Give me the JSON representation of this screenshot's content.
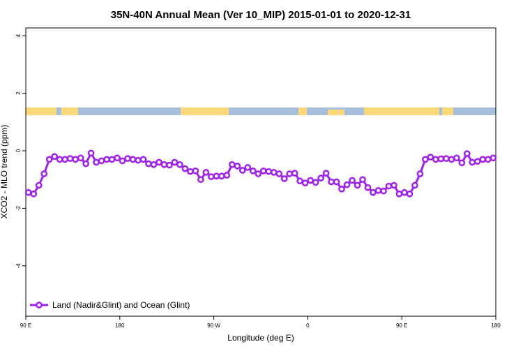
{
  "chart_data": {
    "type": "line",
    "title": "35N-40N Annual Mean (Ver 10_MIP)   2015-01-01 to 2020-12-31",
    "x_label": "Longitude (deg E)",
    "y_label": "XCO2 - MLO trend (ppm)",
    "xlim": [
      90,
      540
    ],
    "ylim": [
      -5.75,
      4.27
    ],
    "xticks": [
      {
        "value": 90,
        "label": "90 E"
      },
      180,
      {
        "value": 270,
        "label": "90 W"
      },
      {
        "value": 360,
        "label": "0"
      },
      {
        "value": 450,
        "label": "90 E"
      },
      {
        "value": 540,
        "label": "180"
      }
    ],
    "yticks": [
      4,
      2,
      0,
      -2,
      -4
    ],
    "legend": "bottom-left",
    "x": [
      92.5,
      97.5,
      102.5,
      107.5,
      112.5,
      117.5,
      122.5,
      127.5,
      132.5,
      137.5,
      142.5,
      147.5,
      152.5,
      157.5,
      162.5,
      167.5,
      172.5,
      177.5,
      182.5,
      187.5,
      192.5,
      197.5,
      202.5,
      207.5,
      212.5,
      217.5,
      222.5,
      227.5,
      232.5,
      237.5,
      242.5,
      247.5,
      252.5,
      257.5,
      262.5,
      267.5,
      272.5,
      277.5,
      282.5,
      287.5,
      292.5,
      297.5,
      302.5,
      307.5,
      312.5,
      317.5,
      322.5,
      327.5,
      332.5,
      337.5,
      342.5,
      347.5,
      352.5,
      357.5,
      362.5,
      367.5,
      372.5,
      377.5,
      382.5,
      387.5,
      392.5,
      397.5,
      402.5,
      407.5,
      412.5,
      417.5,
      422.5,
      427.5,
      432.5,
      437.5,
      442.5,
      447.5,
      452.5,
      457.5,
      462.5,
      467.5,
      472.5,
      477.5,
      482.5,
      487.5,
      492.5,
      497.5,
      502.5,
      507.5,
      512.5,
      517.5,
      522.5,
      527.5,
      532.5,
      537.5
    ],
    "series": [
      {
        "name": "Land (Nadir&Glint) and Ocean (Glint)",
        "color": "#a020f0",
        "values": [
          -1.45,
          -1.5,
          -1.2,
          -0.8,
          -0.3,
          -0.2,
          -0.3,
          -0.3,
          -0.27,
          -0.3,
          -0.25,
          -0.45,
          -0.08,
          -0.4,
          -0.35,
          -0.3,
          -0.3,
          -0.25,
          -0.35,
          -0.27,
          -0.3,
          -0.33,
          -0.3,
          -0.45,
          -0.48,
          -0.4,
          -0.48,
          -0.5,
          -0.4,
          -0.48,
          -0.62,
          -0.72,
          -0.7,
          -1.0,
          -0.75,
          -0.9,
          -0.88,
          -0.88,
          -0.85,
          -0.48,
          -0.53,
          -0.68,
          -0.58,
          -0.7,
          -0.8,
          -0.7,
          -0.72,
          -0.75,
          -0.8,
          -0.97,
          -0.8,
          -0.78,
          -1.05,
          -1.12,
          -1.03,
          -1.1,
          -0.95,
          -0.78,
          -1.08,
          -1.08,
          -1.33,
          -1.18,
          -1.03,
          -1.2,
          -1.0,
          -1.28,
          -1.45,
          -1.38,
          -1.4,
          -1.23,
          -1.2,
          -1.5,
          -1.45,
          -1.5,
          -1.2,
          -0.8,
          -0.3,
          -0.22,
          -0.3,
          -0.28,
          -0.27,
          -0.3,
          -0.25,
          -0.42,
          -0.1,
          -0.4,
          -0.37,
          -0.3,
          -0.3,
          -0.25
        ]
      }
    ]
  }
}
